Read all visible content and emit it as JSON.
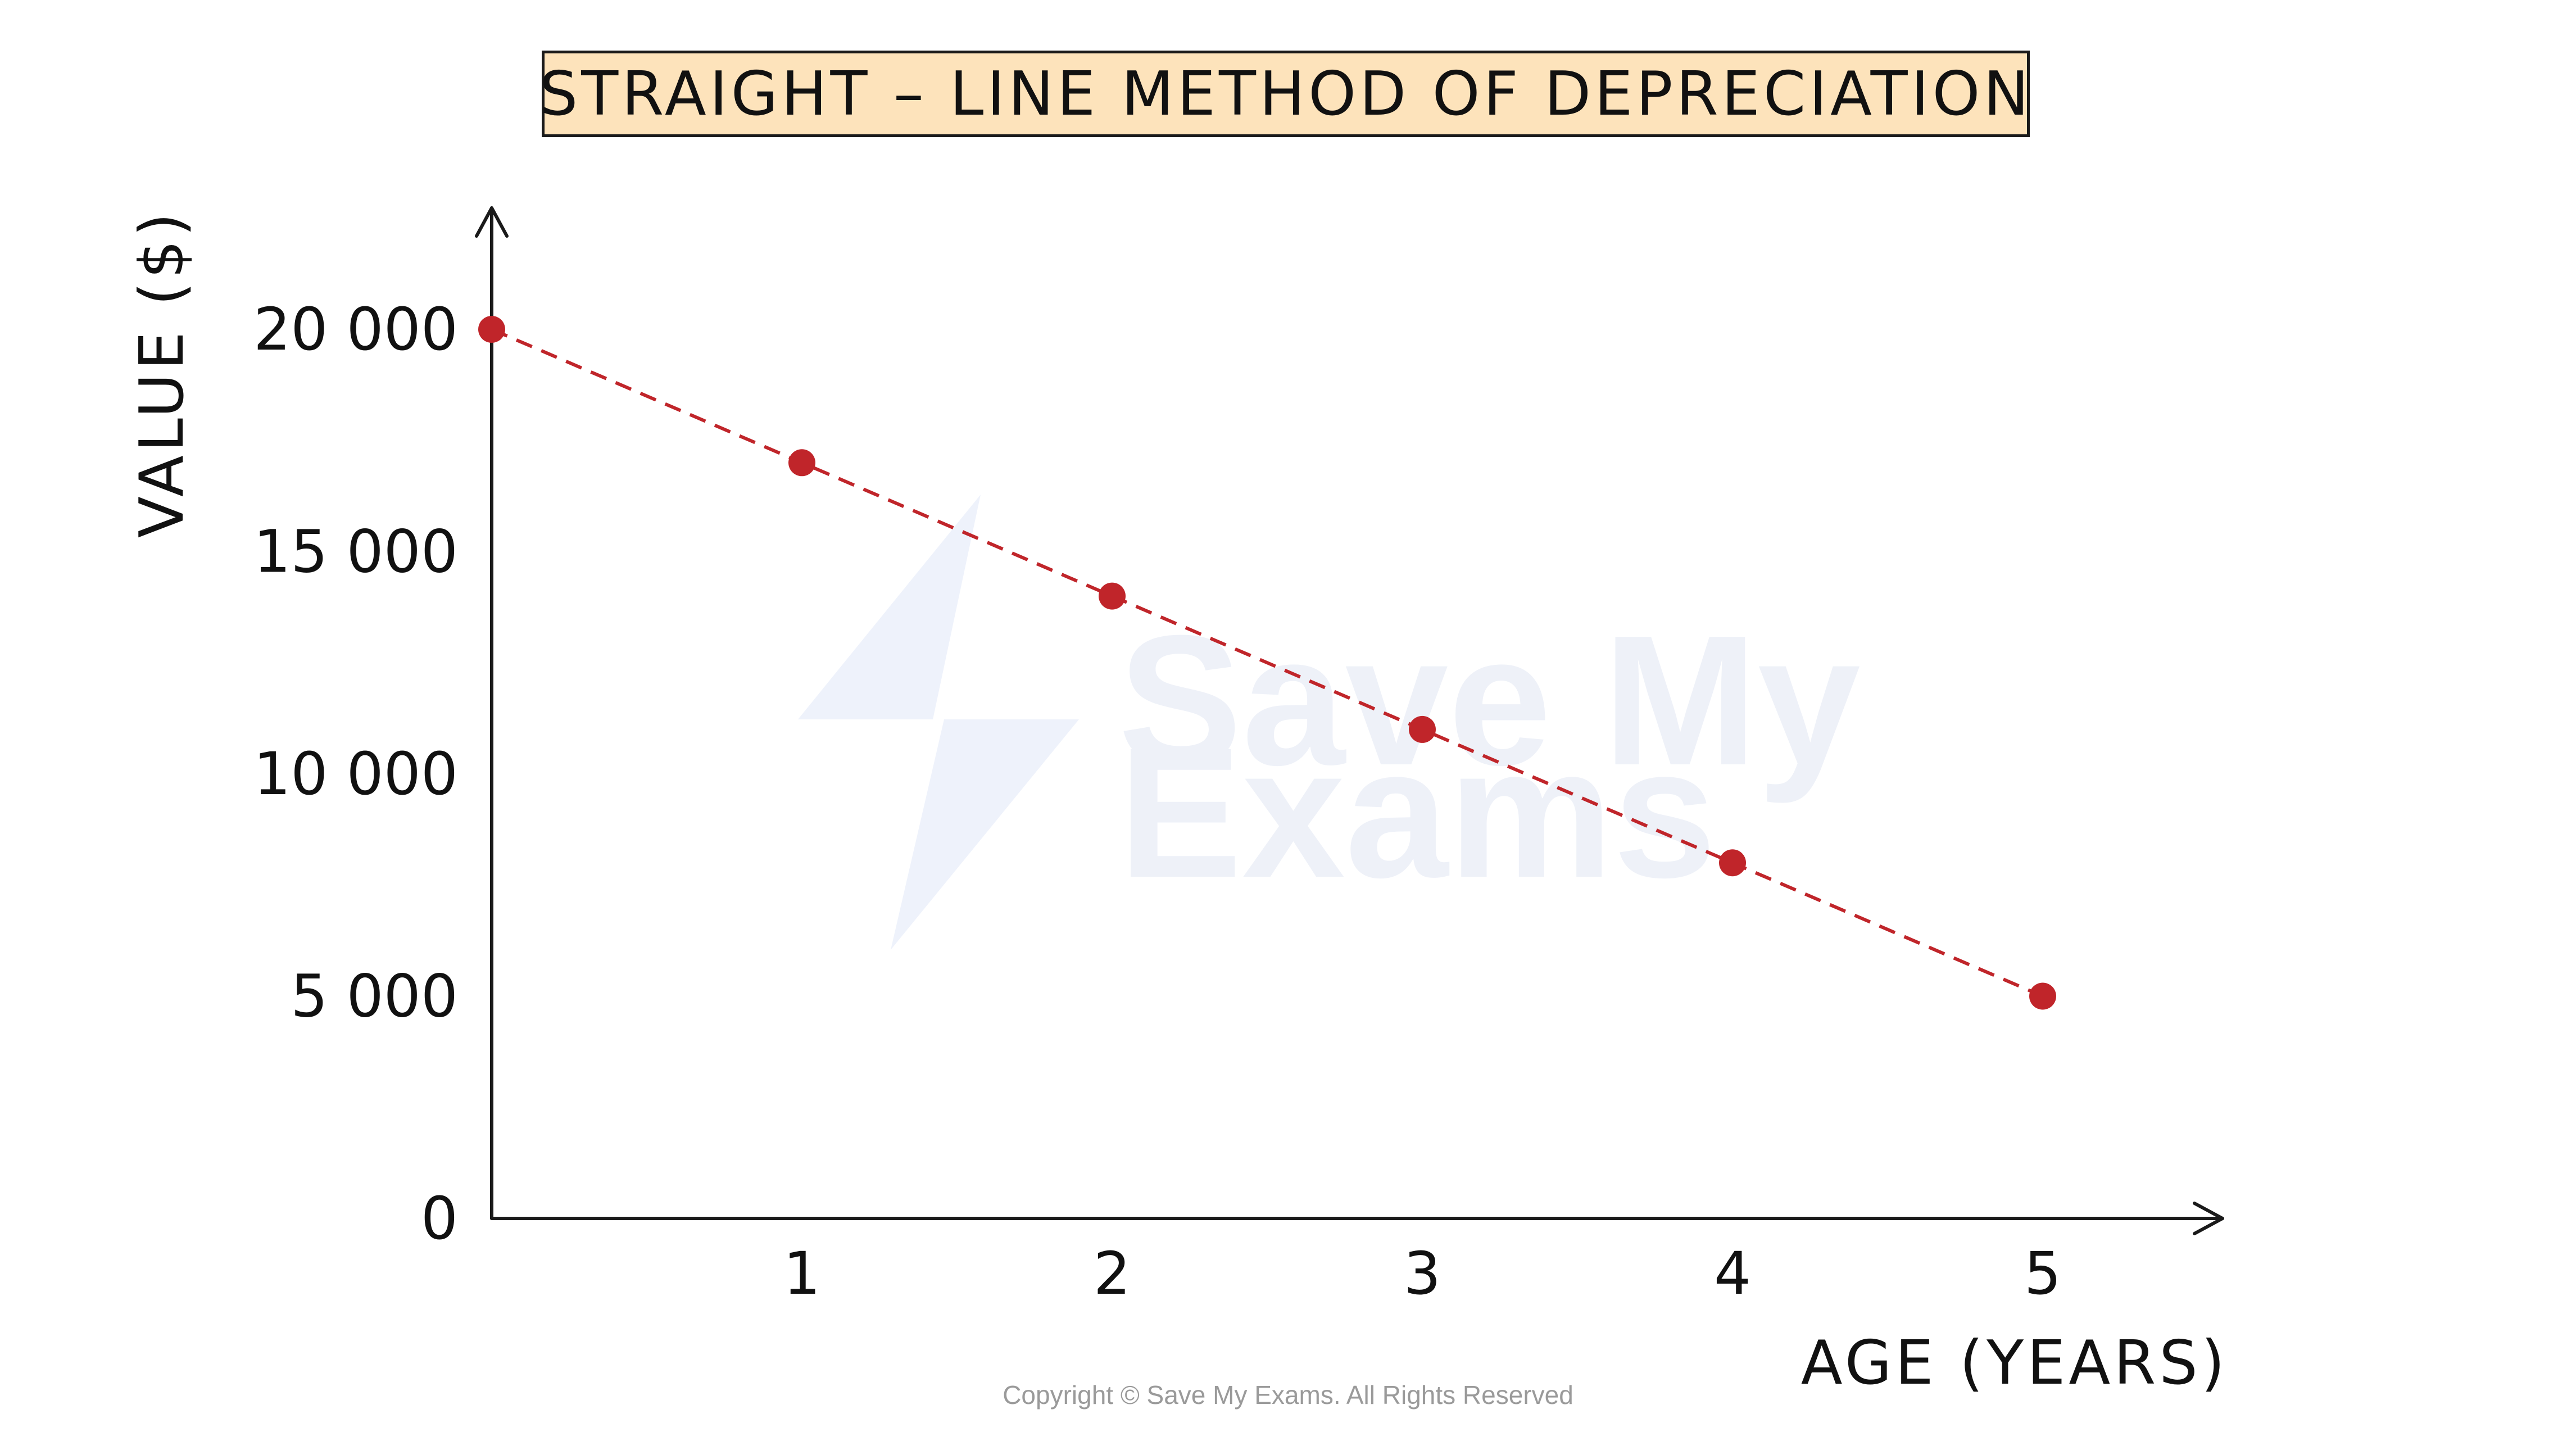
{
  "chart_data": {
    "type": "scatter",
    "title": "STRAIGHT – LINE METHOD OF DEPRECIATION",
    "xlabel": "AGE (YEARS)",
    "ylabel": "VALUE ($)",
    "x": [
      0,
      1,
      2,
      3,
      4,
      5
    ],
    "values": [
      20000,
      17000,
      14000,
      11000,
      8000,
      5000
    ],
    "x_ticks": [
      "1",
      "2",
      "3",
      "4",
      "5"
    ],
    "y_ticks": [
      "0",
      "5 000",
      "10 000",
      "15 000",
      "20 000"
    ],
    "xlim": [
      0,
      5.5
    ],
    "ylim": [
      0,
      22000
    ],
    "trend_line": "dashed",
    "grid": false,
    "colors": {
      "points": "#c0252a",
      "line": "#c0252a",
      "axes": "#1a1a1a",
      "title_bg": "#fde3bb"
    }
  },
  "watermark": {
    "line1": "Save My",
    "line2": "Exams"
  },
  "copyright": "Copyright © Save My Exams. All Rights Reserved"
}
